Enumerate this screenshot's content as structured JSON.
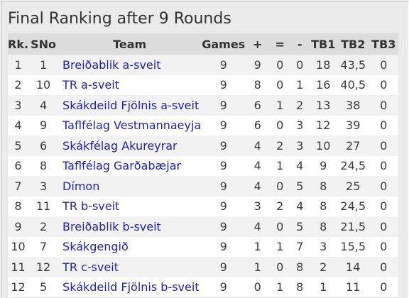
{
  "title": "Final Ranking after 9 Rounds",
  "link_color": "#1f1fb8",
  "headers": {
    "rk": "Rk.",
    "sno": "SNo",
    "team": "Team",
    "games": "Games",
    "plus": "+",
    "eq": "=",
    "minus": "-",
    "tb1": "TB1",
    "tb2": "TB2",
    "tb3": "TB3"
  },
  "rows": [
    {
      "rk": "1",
      "sno": "1",
      "team": "Breiðablik a-sveit",
      "games": "9",
      "plus": "9",
      "eq": "0",
      "minus": "0",
      "tb1": "18",
      "tb2": "43,5",
      "tb3": "0"
    },
    {
      "rk": "2",
      "sno": "10",
      "team": "TR a-sveit",
      "games": "9",
      "plus": "8",
      "eq": "0",
      "minus": "1",
      "tb1": "16",
      "tb2": "40,5",
      "tb3": "0"
    },
    {
      "rk": "3",
      "sno": "4",
      "team": "Skákdeild Fjölnis a-sveit",
      "games": "9",
      "plus": "6",
      "eq": "1",
      "minus": "2",
      "tb1": "13",
      "tb2": "38",
      "tb3": "0"
    },
    {
      "rk": "4",
      "sno": "9",
      "team": "Taflfélag Vestmannaeyja",
      "games": "9",
      "plus": "6",
      "eq": "0",
      "minus": "3",
      "tb1": "12",
      "tb2": "39",
      "tb3": "0"
    },
    {
      "rk": "5",
      "sno": "6",
      "team": "Skákfélag Akureyrar",
      "games": "9",
      "plus": "4",
      "eq": "2",
      "minus": "3",
      "tb1": "10",
      "tb2": "27",
      "tb3": "0"
    },
    {
      "rk": "6",
      "sno": "8",
      "team": "Taflfélag Garðabæjar",
      "games": "9",
      "plus": "4",
      "eq": "1",
      "minus": "4",
      "tb1": "9",
      "tb2": "24,5",
      "tb3": "0"
    },
    {
      "rk": "7",
      "sno": "3",
      "team": "Dímon",
      "games": "9",
      "plus": "4",
      "eq": "0",
      "minus": "5",
      "tb1": "8",
      "tb2": "25",
      "tb3": "0"
    },
    {
      "rk": "8",
      "sno": "11",
      "team": "TR b-sveit",
      "games": "9",
      "plus": "3",
      "eq": "2",
      "minus": "4",
      "tb1": "8",
      "tb2": "24,5",
      "tb3": "0"
    },
    {
      "rk": "9",
      "sno": "2",
      "team": "Breiðablik b-sveit",
      "games": "9",
      "plus": "4",
      "eq": "0",
      "minus": "5",
      "tb1": "8",
      "tb2": "21,5",
      "tb3": "0"
    },
    {
      "rk": "10",
      "sno": "7",
      "team": "Skákgengið",
      "games": "9",
      "plus": "1",
      "eq": "1",
      "minus": "7",
      "tb1": "3",
      "tb2": "15,5",
      "tb3": "0"
    },
    {
      "rk": "11",
      "sno": "12",
      "team": "TR c-sveit",
      "games": "9",
      "plus": "1",
      "eq": "0",
      "minus": "8",
      "tb1": "2",
      "tb2": "14",
      "tb3": "0"
    },
    {
      "rk": "12",
      "sno": "5",
      "team": "Skákdeild Fjölnis b-sveit",
      "games": "9",
      "plus": "0",
      "eq": "1",
      "minus": "8",
      "tb1": "1",
      "tb2": "11",
      "tb3": "0"
    }
  ]
}
